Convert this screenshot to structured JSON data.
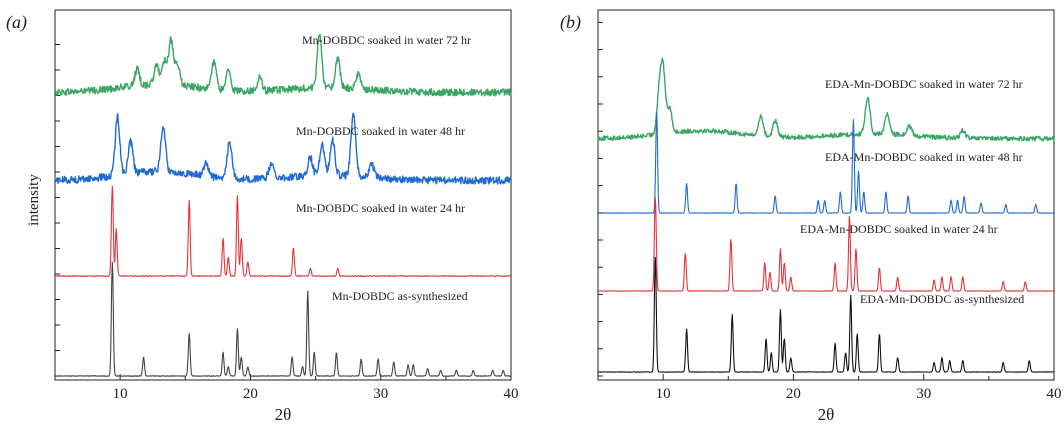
{
  "chart_data": [
    {
      "panel_label": "(a)",
      "type": "line",
      "xlabel": "2θ",
      "ylabel": "intensity",
      "xlim": [
        5,
        40
      ],
      "x_ticks": [
        10,
        20,
        30,
        40
      ],
      "y_ticks_shown": false,
      "series": [
        {
          "name": "Mn-DOBDC soaked in water 72 hr",
          "color": "#3aa564",
          "noise": 0.55,
          "baseline": 0.45,
          "peaks": [
            [
              11.3,
              2.0
            ],
            [
              12.8,
              2.4
            ],
            [
              13.4,
              3.0
            ],
            [
              13.9,
              5.5
            ],
            [
              14.4,
              2.5
            ],
            [
              17.2,
              3.5
            ],
            [
              18.3,
              2.5
            ],
            [
              20.7,
              1.8
            ],
            [
              25.3,
              6.5
            ],
            [
              26.7,
              3.5
            ],
            [
              28.3,
              1.8
            ]
          ]
        },
        {
          "name": "Mn-DOBDC soaked in water 48 hr",
          "color": "#1f6bd0",
          "noise": 0.5,
          "baseline": 0.5,
          "peaks": [
            [
              9.8,
              6.5
            ],
            [
              10.8,
              3.5
            ],
            [
              13.3,
              5.0
            ],
            [
              16.6,
              1.5
            ],
            [
              18.4,
              4.0
            ],
            [
              21.6,
              1.6
            ],
            [
              24.6,
              2.0
            ],
            [
              25.5,
              3.5
            ],
            [
              26.3,
              4.0
            ],
            [
              27.9,
              7.0
            ],
            [
              29.3,
              1.5
            ]
          ]
        },
        {
          "name": "Mn-DOBDC soaked in water 24 hr",
          "color": "#e2343b",
          "noise": 0.05,
          "baseline": 0.1,
          "peaks": [
            [
              9.4,
              9.5
            ],
            [
              9.7,
              5.0
            ],
            [
              15.3,
              8.0
            ],
            [
              17.9,
              4.0
            ],
            [
              18.3,
              2.0
            ],
            [
              19.0,
              8.5
            ],
            [
              19.3,
              4.0
            ],
            [
              19.8,
              1.5
            ],
            [
              23.3,
              3.0
            ],
            [
              24.6,
              0.8
            ],
            [
              26.7,
              0.8
            ]
          ]
        },
        {
          "name": "Mn-DOBDC as-synthesized",
          "color": "#444444",
          "noise": 0.04,
          "baseline": 0.0,
          "peaks": [
            [
              9.4,
              12.0
            ],
            [
              11.8,
              2.0
            ],
            [
              15.3,
              4.5
            ],
            [
              17.9,
              2.5
            ],
            [
              18.3,
              1.0
            ],
            [
              19.0,
              5.0
            ],
            [
              19.3,
              2.0
            ],
            [
              19.8,
              1.0
            ],
            [
              23.2,
              2.0
            ],
            [
              24.0,
              1.0
            ],
            [
              24.4,
              9.0
            ],
            [
              24.9,
              2.5
            ],
            [
              26.6,
              2.5
            ],
            [
              28.5,
              1.8
            ],
            [
              29.8,
              1.8
            ],
            [
              31.0,
              1.5
            ],
            [
              32.1,
              1.2
            ],
            [
              32.5,
              1.2
            ],
            [
              33.6,
              0.8
            ],
            [
              34.6,
              0.6
            ],
            [
              35.8,
              0.6
            ],
            [
              37.1,
              0.6
            ],
            [
              38.6,
              0.6
            ],
            [
              39.4,
              0.6
            ]
          ]
        }
      ]
    },
    {
      "panel_label": "(b)",
      "type": "line",
      "xlabel": "2θ",
      "ylabel": "",
      "xlim": [
        5,
        40
      ],
      "x_ticks": [
        10,
        20,
        30,
        40
      ],
      "y_ticks_shown": false,
      "series": [
        {
          "name": "EDA-Mn-DOBDC soaked in water 72 hr",
          "color": "#3aa564",
          "noise": 0.35,
          "baseline": 0.3,
          "peaks": [
            [
              9.7,
              5.0
            ],
            [
              10.0,
              7.5
            ],
            [
              10.5,
              3.0
            ],
            [
              17.5,
              2.5
            ],
            [
              18.6,
              2.0
            ],
            [
              25.7,
              4.5
            ],
            [
              27.2,
              2.5
            ],
            [
              28.9,
              1.2
            ],
            [
              33.0,
              1.0
            ]
          ]
        },
        {
          "name": "EDA-Mn-DOBDC soaked in water 48 hr",
          "color": "#1f6bd0",
          "noise": 0.03,
          "baseline": 0.0,
          "peaks": [
            [
              9.5,
              12.0
            ],
            [
              11.8,
              3.5
            ],
            [
              15.6,
              3.5
            ],
            [
              18.6,
              2.0
            ],
            [
              21.9,
              1.5
            ],
            [
              22.4,
              1.5
            ],
            [
              23.6,
              2.5
            ],
            [
              24.6,
              11.0
            ],
            [
              25.0,
              5.0
            ],
            [
              25.4,
              2.5
            ],
            [
              27.1,
              2.5
            ],
            [
              28.8,
              2.0
            ],
            [
              32.1,
              1.5
            ],
            [
              32.6,
              1.5
            ],
            [
              33.1,
              2.0
            ],
            [
              34.4,
              1.2
            ],
            [
              36.3,
              1.0
            ],
            [
              38.6,
              1.0
            ]
          ]
        },
        {
          "name": "EDA-Mn-DOBDC soaked in water 24 hr",
          "color": "#e2343b",
          "noise": 0.03,
          "baseline": 0.0,
          "peaks": [
            [
              9.4,
              10.0
            ],
            [
              11.7,
              4.0
            ],
            [
              15.2,
              5.5
            ],
            [
              17.8,
              3.0
            ],
            [
              18.2,
              2.0
            ],
            [
              19.0,
              4.5
            ],
            [
              19.3,
              3.0
            ],
            [
              19.8,
              1.5
            ],
            [
              23.2,
              3.0
            ],
            [
              24.3,
              8.0
            ],
            [
              24.8,
              4.5
            ],
            [
              26.6,
              2.5
            ],
            [
              28.0,
              1.5
            ],
            [
              30.8,
              1.2
            ],
            [
              31.4,
              1.5
            ],
            [
              32.1,
              1.5
            ],
            [
              33.0,
              1.5
            ],
            [
              36.1,
              1.0
            ],
            [
              37.8,
              1.0
            ]
          ]
        },
        {
          "name": "EDA-Mn-DOBDC as-synthesized",
          "color": "#111111",
          "noise": 0.03,
          "baseline": 0.0,
          "peaks": [
            [
              9.4,
              12.0
            ],
            [
              11.8,
              4.5
            ],
            [
              15.3,
              6.0
            ],
            [
              17.9,
              3.5
            ],
            [
              18.3,
              2.0
            ],
            [
              19.0,
              6.5
            ],
            [
              19.3,
              3.5
            ],
            [
              19.8,
              1.5
            ],
            [
              23.2,
              3.0
            ],
            [
              24.0,
              2.0
            ],
            [
              24.4,
              8.0
            ],
            [
              24.9,
              4.0
            ],
            [
              26.6,
              4.0
            ],
            [
              28.0,
              1.5
            ],
            [
              30.8,
              1.0
            ],
            [
              31.4,
              1.5
            ],
            [
              32.0,
              1.2
            ],
            [
              33.0,
              1.2
            ],
            [
              36.1,
              1.0
            ],
            [
              38.1,
              1.2
            ]
          ]
        }
      ]
    }
  ]
}
